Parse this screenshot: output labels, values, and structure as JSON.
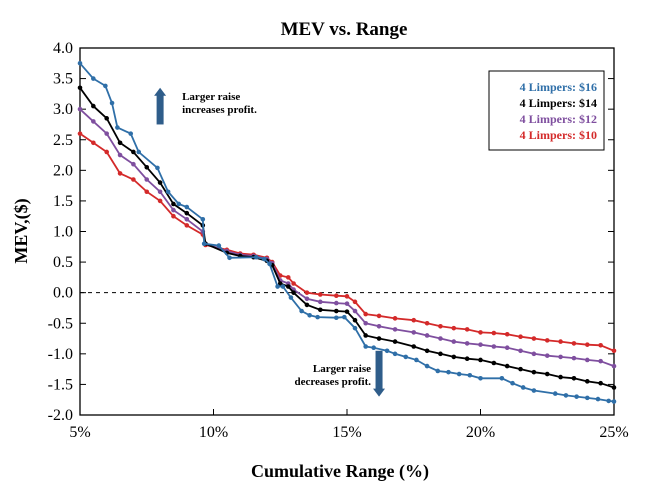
{
  "chart_data": {
    "type": "line",
    "title": "MEV vs. Range",
    "xlabel": "Cumulative Range (%)",
    "ylabel": "MEV,($)",
    "xlim": [
      5,
      25
    ],
    "ylim": [
      -2.0,
      4.0
    ],
    "x_ticks": [
      5,
      10,
      15,
      20,
      25
    ],
    "x_tick_labels": [
      "5%",
      "10%",
      "15%",
      "20%",
      "25%"
    ],
    "y_ticks": [
      4.0,
      3.5,
      3.0,
      2.5,
      2.0,
      1.5,
      1.0,
      0.5,
      0.0,
      -0.5,
      -1.0,
      -1.5,
      -2.0
    ],
    "y_tick_labels": [
      "4.0",
      "3.5",
      "3.0",
      "2.5",
      "2.0",
      "1.5",
      "1.0",
      "0.5",
      "0.0",
      "-0.5",
      "-1.0",
      "-1.5",
      "-2.0"
    ],
    "reference_line": {
      "y": 0.0,
      "style": "dashed"
    },
    "legend": {
      "placement": "top-right"
    },
    "annotations": [
      {
        "text_lines": [
          "Larger raise",
          "increases profit."
        ],
        "arrow": "up",
        "x": 8.0,
        "y_arrow": [
          2.75,
          3.35
        ],
        "y_text": 3.15
      },
      {
        "text_lines": [
          "Larger raise",
          "decreases profit."
        ],
        "arrow": "down",
        "x": 16.2,
        "y_arrow": [
          -0.95,
          -1.7
        ],
        "y_text": -1.3
      }
    ],
    "series": [
      {
        "name": "4 Limpers: $16",
        "color": "#2f6fa8",
        "points": [
          [
            5.0,
            3.75
          ],
          [
            5.5,
            3.5
          ],
          [
            5.95,
            3.38
          ],
          [
            6.2,
            3.1
          ],
          [
            6.4,
            2.7
          ],
          [
            6.9,
            2.6
          ],
          [
            7.2,
            2.3
          ],
          [
            7.9,
            2.04
          ],
          [
            8.3,
            1.65
          ],
          [
            8.7,
            1.45
          ],
          [
            9.0,
            1.4
          ],
          [
            9.6,
            1.2
          ],
          [
            9.65,
            0.8
          ],
          [
            10.2,
            0.77
          ],
          [
            10.6,
            0.57
          ],
          [
            11.6,
            0.58
          ],
          [
            11.9,
            0.55
          ],
          [
            12.1,
            0.47
          ],
          [
            12.4,
            0.1
          ],
          [
            12.6,
            0.1
          ],
          [
            12.9,
            -0.08
          ],
          [
            13.3,
            -0.3
          ],
          [
            13.6,
            -0.37
          ],
          [
            13.9,
            -0.4
          ],
          [
            14.6,
            -0.41
          ],
          [
            14.9,
            -0.4
          ],
          [
            15.3,
            -0.58
          ],
          [
            15.7,
            -0.88
          ],
          [
            16.0,
            -0.9
          ],
          [
            16.5,
            -0.95
          ],
          [
            16.8,
            -1.0
          ],
          [
            17.2,
            -1.05
          ],
          [
            17.6,
            -1.1
          ],
          [
            18.0,
            -1.2
          ],
          [
            18.4,
            -1.28
          ],
          [
            18.8,
            -1.3
          ],
          [
            19.2,
            -1.33
          ],
          [
            19.6,
            -1.35
          ],
          [
            20.0,
            -1.4
          ],
          [
            20.8,
            -1.4
          ],
          [
            21.2,
            -1.48
          ],
          [
            21.6,
            -1.55
          ],
          [
            22.0,
            -1.6
          ],
          [
            22.8,
            -1.65
          ],
          [
            23.2,
            -1.68
          ],
          [
            23.6,
            -1.7
          ],
          [
            24.0,
            -1.72
          ],
          [
            24.4,
            -1.74
          ],
          [
            24.8,
            -1.77
          ],
          [
            25.0,
            -1.78
          ]
        ]
      },
      {
        "name": "4 Limpers: $14",
        "color": "#000000",
        "points": [
          [
            5.0,
            3.35
          ],
          [
            5.5,
            3.05
          ],
          [
            6.0,
            2.85
          ],
          [
            6.5,
            2.45
          ],
          [
            7.0,
            2.3
          ],
          [
            7.5,
            2.05
          ],
          [
            8.0,
            1.8
          ],
          [
            8.5,
            1.45
          ],
          [
            9.0,
            1.3
          ],
          [
            9.6,
            1.1
          ],
          [
            9.7,
            0.8
          ],
          [
            10.5,
            0.65
          ],
          [
            11.0,
            0.6
          ],
          [
            11.5,
            0.58
          ],
          [
            12.0,
            0.52
          ],
          [
            12.2,
            0.45
          ],
          [
            12.5,
            0.15
          ],
          [
            12.8,
            0.1
          ],
          [
            13.0,
            0.0
          ],
          [
            13.5,
            -0.2
          ],
          [
            14.0,
            -0.28
          ],
          [
            14.6,
            -0.3
          ],
          [
            15.0,
            -0.31
          ],
          [
            15.3,
            -0.45
          ],
          [
            15.7,
            -0.7
          ],
          [
            16.2,
            -0.75
          ],
          [
            16.8,
            -0.8
          ],
          [
            17.5,
            -0.88
          ],
          [
            18.0,
            -0.95
          ],
          [
            18.5,
            -1.0
          ],
          [
            19.0,
            -1.05
          ],
          [
            19.5,
            -1.08
          ],
          [
            20.0,
            -1.1
          ],
          [
            20.5,
            -1.15
          ],
          [
            21.0,
            -1.2
          ],
          [
            21.5,
            -1.25
          ],
          [
            22.0,
            -1.3
          ],
          [
            22.5,
            -1.33
          ],
          [
            23.0,
            -1.38
          ],
          [
            23.5,
            -1.4
          ],
          [
            24.0,
            -1.45
          ],
          [
            24.5,
            -1.48
          ],
          [
            25.0,
            -1.55
          ]
        ]
      },
      {
        "name": "4 Limpers: $12",
        "color": "#7f4f9f",
        "points": [
          [
            5.0,
            3.0
          ],
          [
            5.5,
            2.8
          ],
          [
            6.0,
            2.6
          ],
          [
            6.5,
            2.25
          ],
          [
            7.0,
            2.1
          ],
          [
            7.5,
            1.85
          ],
          [
            8.0,
            1.65
          ],
          [
            8.5,
            1.35
          ],
          [
            9.0,
            1.2
          ],
          [
            9.6,
            1.0
          ],
          [
            9.7,
            0.8
          ],
          [
            10.5,
            0.68
          ],
          [
            11.0,
            0.62
          ],
          [
            11.5,
            0.6
          ],
          [
            12.0,
            0.55
          ],
          [
            12.2,
            0.48
          ],
          [
            12.5,
            0.2
          ],
          [
            12.8,
            0.15
          ],
          [
            13.0,
            0.05
          ],
          [
            13.5,
            -0.1
          ],
          [
            14.0,
            -0.15
          ],
          [
            14.6,
            -0.17
          ],
          [
            15.0,
            -0.18
          ],
          [
            15.3,
            -0.3
          ],
          [
            15.7,
            -0.5
          ],
          [
            16.2,
            -0.55
          ],
          [
            16.8,
            -0.6
          ],
          [
            17.5,
            -0.65
          ],
          [
            18.0,
            -0.7
          ],
          [
            18.5,
            -0.75
          ],
          [
            19.0,
            -0.8
          ],
          [
            19.5,
            -0.83
          ],
          [
            20.0,
            -0.85
          ],
          [
            20.5,
            -0.88
          ],
          [
            21.0,
            -0.9
          ],
          [
            21.5,
            -0.95
          ],
          [
            22.0,
            -1.0
          ],
          [
            22.5,
            -1.03
          ],
          [
            23.0,
            -1.05
          ],
          [
            23.5,
            -1.07
          ],
          [
            24.0,
            -1.1
          ],
          [
            24.5,
            -1.12
          ],
          [
            25.0,
            -1.2
          ]
        ]
      },
      {
        "name": "4 Limpers: $10",
        "color": "#d42a2a",
        "points": [
          [
            5.0,
            2.6
          ],
          [
            5.5,
            2.45
          ],
          [
            6.0,
            2.3
          ],
          [
            6.5,
            1.95
          ],
          [
            7.0,
            1.85
          ],
          [
            7.5,
            1.65
          ],
          [
            8.0,
            1.5
          ],
          [
            8.5,
            1.25
          ],
          [
            9.0,
            1.1
          ],
          [
            9.6,
            0.95
          ],
          [
            9.7,
            0.78
          ],
          [
            10.5,
            0.7
          ],
          [
            11.0,
            0.64
          ],
          [
            11.5,
            0.62
          ],
          [
            12.0,
            0.57
          ],
          [
            12.2,
            0.5
          ],
          [
            12.5,
            0.28
          ],
          [
            12.8,
            0.25
          ],
          [
            13.0,
            0.15
          ],
          [
            13.5,
            0.0
          ],
          [
            14.0,
            -0.03
          ],
          [
            14.6,
            -0.05
          ],
          [
            15.0,
            -0.06
          ],
          [
            15.3,
            -0.15
          ],
          [
            15.7,
            -0.35
          ],
          [
            16.2,
            -0.38
          ],
          [
            16.8,
            -0.42
          ],
          [
            17.5,
            -0.45
          ],
          [
            18.0,
            -0.5
          ],
          [
            18.5,
            -0.55
          ],
          [
            19.0,
            -0.58
          ],
          [
            19.5,
            -0.6
          ],
          [
            20.0,
            -0.65
          ],
          [
            20.5,
            -0.66
          ],
          [
            21.0,
            -0.68
          ],
          [
            21.5,
            -0.72
          ],
          [
            22.0,
            -0.75
          ],
          [
            22.5,
            -0.78
          ],
          [
            23.0,
            -0.8
          ],
          [
            23.5,
            -0.83
          ],
          [
            24.0,
            -0.85
          ],
          [
            24.5,
            -0.86
          ],
          [
            25.0,
            -0.95
          ]
        ]
      }
    ]
  }
}
